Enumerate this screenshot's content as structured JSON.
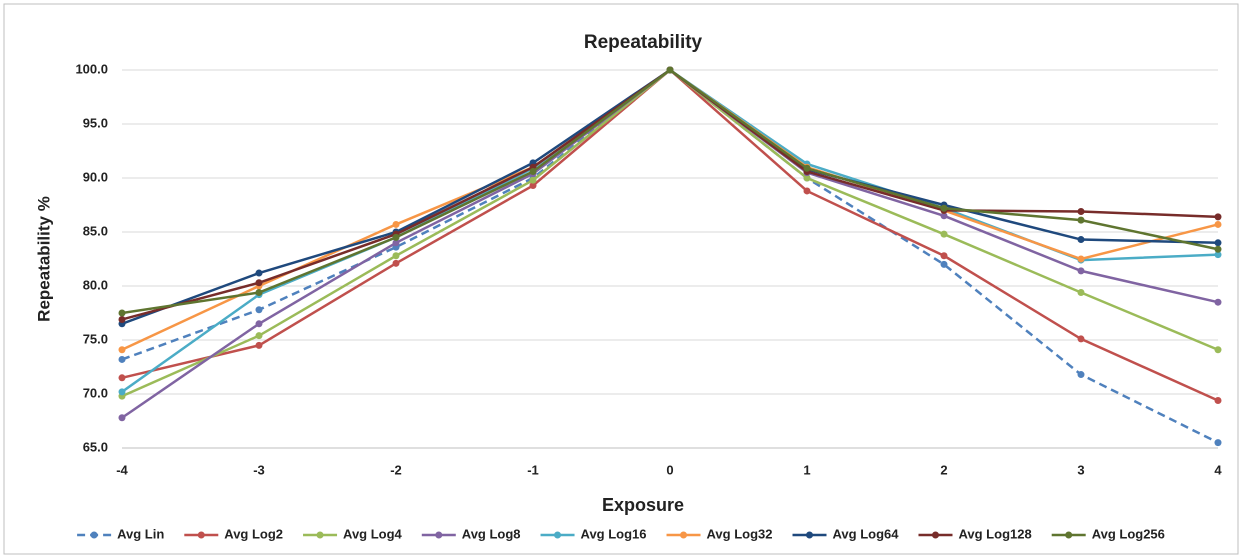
{
  "chart_data": {
    "type": "line",
    "title": "Repeatability",
    "xlabel": "Exposure",
    "ylabel": "Repeatability %",
    "categories": [
      "-4",
      "-3",
      "-2",
      "-1",
      "0",
      "1",
      "2",
      "3",
      "4"
    ],
    "ylim": [
      65,
      100
    ],
    "yticks": [
      {
        "value": 65,
        "label": "65.0"
      },
      {
        "value": 70,
        "label": "70.0"
      },
      {
        "value": 75,
        "label": "75.0"
      },
      {
        "value": 80,
        "label": "80.0"
      },
      {
        "value": 85,
        "label": "85.0"
      },
      {
        "value": 90,
        "label": "90.0"
      },
      {
        "value": 95,
        "label": "95.0"
      },
      {
        "value": 100,
        "label": "100.0"
      }
    ],
    "grid": true,
    "legend": "bottom",
    "series": [
      {
        "name": "Avg Lin",
        "color": "#4f81bd",
        "dash": true,
        "values": [
          73.2,
          77.8,
          83.6,
          90.0,
          100,
          90.0,
          82.0,
          71.8,
          65.5
        ]
      },
      {
        "name": "Avg Log2",
        "color": "#c0504d",
        "values": [
          71.5,
          74.5,
          82.1,
          89.3,
          100,
          88.8,
          82.8,
          75.1,
          69.4
        ]
      },
      {
        "name": "Avg Log4",
        "color": "#9bbb59",
        "values": [
          69.8,
          75.4,
          82.8,
          89.8,
          100,
          90.0,
          84.8,
          79.4,
          74.1
        ]
      },
      {
        "name": "Avg Log8",
        "color": "#8064a2",
        "values": [
          67.8,
          76.5,
          84.0,
          90.4,
          100,
          90.5,
          86.5,
          81.4,
          78.5
        ]
      },
      {
        "name": "Avg Log16",
        "color": "#4bacc6",
        "values": [
          70.2,
          79.2,
          84.5,
          90.9,
          100,
          91.3,
          87.2,
          82.4,
          82.9
        ]
      },
      {
        "name": "Avg Log32",
        "color": "#f79646",
        "values": [
          74.1,
          80.0,
          85.7,
          91.0,
          100,
          91.0,
          87.0,
          82.5,
          85.7
        ]
      },
      {
        "name": "Avg Log64",
        "color": "#1f497d",
        "values": [
          76.5,
          81.2,
          85.0,
          91.4,
          100,
          90.8,
          87.5,
          84.3,
          84.0
        ]
      },
      {
        "name": "Avg Log128",
        "color": "#772c2a",
        "values": [
          76.9,
          80.3,
          84.8,
          91.0,
          100,
          90.6,
          87.0,
          86.9,
          86.4
        ]
      },
      {
        "name": "Avg Log256",
        "color": "#5f7530",
        "values": [
          77.5,
          79.4,
          84.5,
          90.6,
          100,
          90.9,
          87.2,
          86.1,
          83.4
        ]
      }
    ]
  }
}
